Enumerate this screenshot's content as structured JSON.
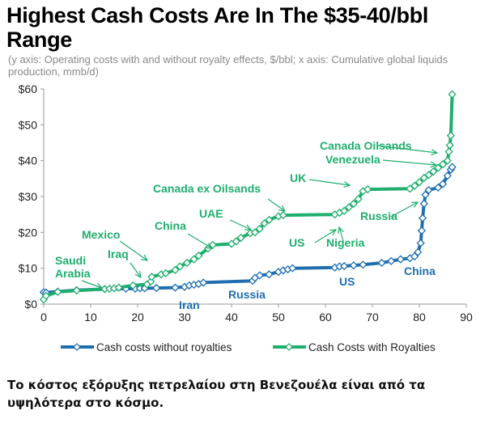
{
  "header": {
    "title": "Highest Cash Costs Are In The $35-40/bbl Range",
    "subtitle": "(y axis: Operating costs with and without royalty effects, $/bbl; x axis: Cumulative global liquids production, mmb/d)"
  },
  "caption": "Το κόστος εξόρυξης πετρελαίου στη Βενεζουέλα είναι από τα υψηλότερα στο κόσμο.",
  "colors": {
    "without_royalties": "#1f6fb0",
    "with_royalties": "#1fae6e"
  },
  "chart_data": {
    "type": "line",
    "title": "Highest Cash Costs Are In The $35-40/bbl Range",
    "xlabel": "Cumulative global liquids production, mmb/d",
    "ylabel": "Operating costs with and without royalty effects, $/bbl",
    "xlim": [
      0,
      90
    ],
    "ylim": [
      0,
      60
    ],
    "x_ticks": [
      "0",
      "10",
      "20",
      "30",
      "40",
      "50",
      "60",
      "70",
      "80",
      "90"
    ],
    "y_ticks": [
      "$0",
      "$10",
      "$20",
      "$30",
      "$40",
      "$50",
      "$60"
    ],
    "grid": false,
    "legend_position": "bottom",
    "series": [
      {
        "name": "Cash costs without royalties",
        "color": "#1f6fb0",
        "points": [
          [
            0,
            3.3
          ],
          [
            0.5,
            3.2
          ],
          [
            3,
            3.5
          ],
          [
            7,
            3.9
          ],
          [
            13,
            4.2
          ],
          [
            17.5,
            4.3
          ],
          [
            19.5,
            4.3
          ],
          [
            20.5,
            4.4
          ],
          [
            21.5,
            4.4
          ],
          [
            24,
            4.5
          ],
          [
            28,
            4.6
          ],
          [
            30,
            4.8
          ],
          [
            31,
            5.2
          ],
          [
            32,
            5.4
          ],
          [
            33,
            5.6
          ],
          [
            34,
            6.0
          ],
          [
            44.5,
            6.5
          ],
          [
            45,
            7.3
          ],
          [
            46,
            8.0
          ],
          [
            48,
            8.3
          ],
          [
            50,
            9.0
          ],
          [
            51,
            9.4
          ],
          [
            52,
            9.7
          ],
          [
            53,
            10.0
          ],
          [
            62,
            10.2
          ],
          [
            63,
            10.5
          ],
          [
            64,
            10.6
          ],
          [
            66,
            10.8
          ],
          [
            68,
            11.0
          ],
          [
            72,
            11.5
          ],
          [
            74,
            12.0
          ],
          [
            76,
            12.5
          ],
          [
            78,
            12.8
          ],
          [
            79,
            13.3
          ],
          [
            79.7,
            14.5
          ],
          [
            80.3,
            17
          ],
          [
            80.5,
            20.5
          ],
          [
            80.7,
            24
          ],
          [
            81,
            28
          ],
          [
            81.3,
            30.5
          ],
          [
            82,
            31.8
          ],
          [
            84,
            32.5
          ],
          [
            85,
            33.5
          ],
          [
            86,
            35.8
          ],
          [
            86.7,
            37.5
          ],
          [
            87,
            38.2
          ]
        ]
      },
      {
        "name": "Cash Costs with Royalties",
        "color": "#1fae6e",
        "points": [
          [
            0,
            1.3
          ],
          [
            0.5,
            2.3
          ],
          [
            3,
            3.4
          ],
          [
            7,
            3.8
          ],
          [
            13,
            4.2
          ],
          [
            14,
            4.3
          ],
          [
            15,
            4.4
          ],
          [
            16,
            4.6
          ],
          [
            19,
            5.2
          ],
          [
            22,
            5.5
          ],
          [
            22.8,
            6.3
          ],
          [
            23,
            7.6
          ],
          [
            25,
            8.3
          ],
          [
            26,
            8.6
          ],
          [
            28,
            9.5
          ],
          [
            29,
            10.5
          ],
          [
            30.5,
            11.5
          ],
          [
            32,
            12.5
          ],
          [
            33,
            13.5
          ],
          [
            35,
            15.5
          ],
          [
            36,
            16.5
          ],
          [
            40,
            16.8
          ],
          [
            41,
            17.5
          ],
          [
            42,
            18.5
          ],
          [
            44,
            19.8
          ],
          [
            45,
            20
          ],
          [
            46,
            21
          ],
          [
            47,
            22.5
          ],
          [
            48,
            23.5
          ],
          [
            50,
            24.5
          ],
          [
            51,
            24.8
          ],
          [
            62,
            25
          ],
          [
            63,
            25.5
          ],
          [
            64,
            26
          ],
          [
            65,
            27
          ],
          [
            66,
            28
          ],
          [
            67,
            29.3
          ],
          [
            68,
            31.5
          ],
          [
            69,
            32
          ],
          [
            78,
            32.2
          ],
          [
            79,
            33
          ],
          [
            80,
            34
          ],
          [
            81,
            35.2
          ],
          [
            82,
            36
          ],
          [
            83,
            37
          ],
          [
            84,
            38
          ],
          [
            85,
            39
          ],
          [
            86,
            40
          ],
          [
            86.3,
            42.5
          ],
          [
            86.5,
            44.3
          ],
          [
            86.7,
            47
          ],
          [
            87,
            58.5
          ]
        ]
      }
    ],
    "annotations": [
      {
        "text": "Saudi",
        "series": "Cash Costs with Royalties"
      },
      {
        "text": "Arabia",
        "series": "Cash Costs with Royalties"
      },
      {
        "text": "Iraq",
        "series": "Cash Costs with Royalties"
      },
      {
        "text": "Mexico",
        "series": "Cash Costs with Royalties"
      },
      {
        "text": "China",
        "series": "Cash Costs with Royalties"
      },
      {
        "text": "UAE",
        "series": "Cash Costs with Royalties"
      },
      {
        "text": "Canada ex Oilsands",
        "series": "Cash Costs with Royalties"
      },
      {
        "text": "UK",
        "series": "Cash Costs with Royalties"
      },
      {
        "text": "US",
        "series": "Cash Costs with Royalties"
      },
      {
        "text": "Nigeria",
        "series": "Cash Costs with Royalties"
      },
      {
        "text": "Russia",
        "series": "Cash Costs with Royalties"
      },
      {
        "text": "Canada Oilsands",
        "series": "Cash Costs with Royalties"
      },
      {
        "text": "Venezuela",
        "series": "Cash Costs with Royalties"
      },
      {
        "text": "Iran",
        "series": "Cash costs without royalties"
      },
      {
        "text": "Russia",
        "series": "Cash costs without royalties"
      },
      {
        "text": "US",
        "series": "Cash costs without royalties"
      },
      {
        "text": "China",
        "series": "Cash costs without royalties"
      }
    ]
  }
}
